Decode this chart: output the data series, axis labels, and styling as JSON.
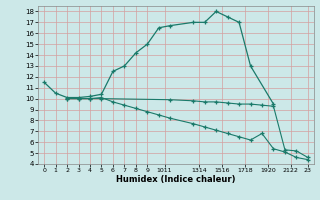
{
  "title": "",
  "xlabel": "Humidex (Indice chaleur)",
  "bg_color": "#cce8e8",
  "grid_color": "#d4a0a0",
  "line_color": "#1a7a6a",
  "xlim": [
    -0.5,
    23.5
  ],
  "ylim": [
    4,
    18.5
  ],
  "yticks": [
    4,
    5,
    6,
    7,
    8,
    9,
    10,
    11,
    12,
    13,
    14,
    15,
    16,
    17,
    18
  ],
  "line1_x": [
    0,
    1,
    2,
    3,
    4,
    5,
    6,
    7,
    8,
    9,
    10,
    11,
    13,
    14,
    15,
    16,
    17,
    18,
    20
  ],
  "line1_y": [
    11.5,
    10.5,
    10.1,
    10.1,
    10.2,
    10.4,
    12.5,
    13.0,
    14.2,
    15.0,
    16.5,
    16.7,
    17.0,
    17.0,
    18.0,
    17.5,
    17.0,
    13.0,
    9.5
  ],
  "line2_x": [
    2,
    3,
    4,
    5,
    6,
    7,
    8,
    9,
    10,
    11,
    13,
    14,
    15,
    16,
    17,
    18,
    19,
    20,
    21,
    22,
    23
  ],
  "line2_y": [
    10.0,
    10.0,
    10.0,
    10.1,
    9.7,
    9.4,
    9.1,
    8.8,
    8.5,
    8.2,
    7.7,
    7.4,
    7.1,
    6.8,
    6.5,
    6.2,
    6.8,
    5.4,
    5.1,
    4.6,
    4.4
  ],
  "line3_x": [
    2,
    3,
    4,
    5,
    11,
    13,
    14,
    15,
    16,
    17,
    18,
    19,
    20,
    21,
    22,
    23
  ],
  "line3_y": [
    10.0,
    10.0,
    10.0,
    10.0,
    9.9,
    9.8,
    9.7,
    9.7,
    9.6,
    9.5,
    9.5,
    9.4,
    9.3,
    5.3,
    5.2,
    4.6
  ],
  "xtick_groups": [
    "0",
    "1",
    "2",
    "3",
    "4",
    "5",
    "6",
    "7",
    "8",
    "9",
    "1011",
    "",
    "1314",
    "",
    "1516",
    "",
    "1718",
    "",
    "1920",
    "",
    "2122",
    "",
    "23"
  ]
}
